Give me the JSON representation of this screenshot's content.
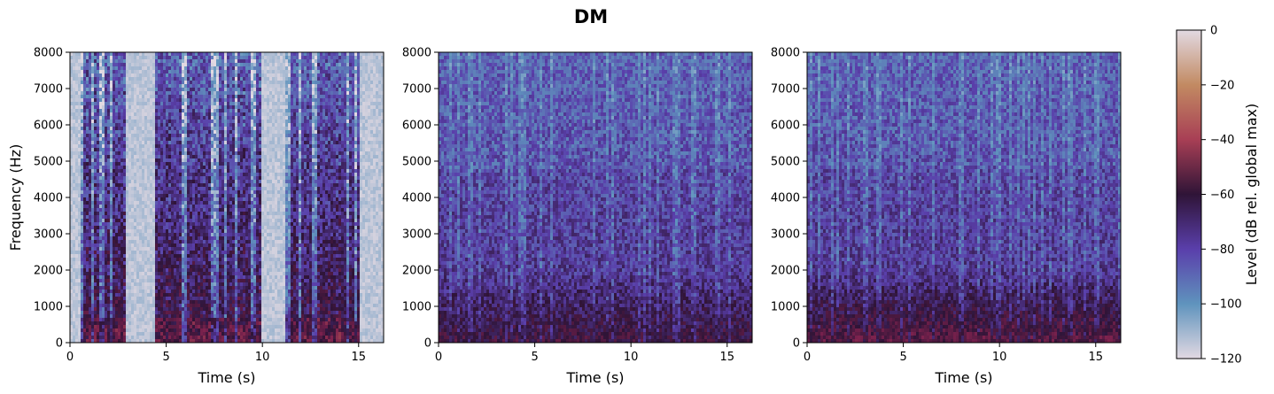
{
  "figure": {
    "title": "DM"
  },
  "chart_data": [
    {
      "type": "heatmap",
      "xlabel": "Time (s)",
      "ylabel": "Frequency (Hz)",
      "xlim": [
        0,
        16.3
      ],
      "ylim": [
        0,
        8000
      ],
      "xticks": [
        0,
        5,
        10,
        15
      ],
      "yticks": [
        0,
        1000,
        2000,
        3000,
        4000,
        5000,
        6000,
        7000,
        8000
      ],
      "level_range_db": [
        -120,
        0
      ],
      "silent_regions_s": [
        [
          0,
          0.6
        ],
        [
          2.9,
          4.4
        ],
        [
          9.9,
          11.2
        ],
        [
          15.1,
          16.3
        ]
      ]
    },
    {
      "type": "heatmap",
      "xlabel": "Time (s)",
      "ylabel": "",
      "xlim": [
        0,
        16.3
      ],
      "ylim": [
        0,
        8000
      ],
      "xticks": [
        0,
        5,
        10,
        15
      ],
      "yticks": [
        0,
        1000,
        2000,
        3000,
        4000,
        5000,
        6000,
        7000,
        8000
      ],
      "level_range_db": [
        -120,
        0
      ]
    },
    {
      "type": "heatmap",
      "xlabel": "Time (s)",
      "ylabel": "",
      "xlim": [
        0,
        16.3
      ],
      "ylim": [
        0,
        8000
      ],
      "xticks": [
        0,
        5,
        10,
        15
      ],
      "yticks": [
        0,
        1000,
        2000,
        3000,
        4000,
        5000,
        6000,
        7000,
        8000
      ],
      "level_range_db": [
        -120,
        0
      ]
    }
  ],
  "colorbar": {
    "label": "Level (dB rel. global max)",
    "min": -120,
    "max": 0,
    "ticks": [
      0,
      -20,
      -40,
      -60,
      -80,
      -100,
      -120
    ],
    "colormap": "twilight",
    "colors": [
      "#e2d9e2",
      "#5f93bd",
      "#5a3fab",
      "#2f1437",
      "#a83f55",
      "#c28a62",
      "#e2d9e2"
    ]
  }
}
